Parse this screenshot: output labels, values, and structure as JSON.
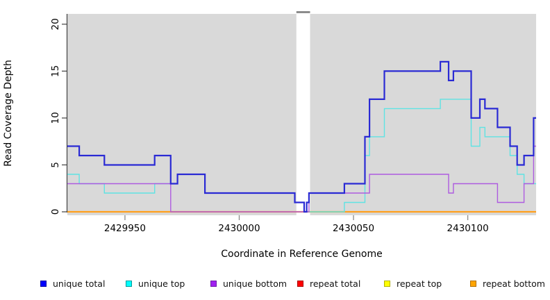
{
  "figure": {
    "xlabel": "Coordinate in Reference Genome",
    "ylabel": "Read Coverage Depth"
  },
  "chart_data": {
    "type": "line",
    "subtype": "step-coverage",
    "title": "",
    "xlabel": "Coordinate in Reference Genome",
    "ylabel": "Read Coverage Depth",
    "xlim": [
      2429924.8,
      2430129.9
    ],
    "ylim": [
      0,
      21.1
    ],
    "x_ticks": [
      2429950,
      2430000,
      2430050,
      2430100
    ],
    "y_ticks": [
      0,
      5,
      10,
      15,
      20
    ],
    "grid": false,
    "panel_bg": "#D9D9D9",
    "gap_region": {
      "start": 2430025,
      "end": 2430031,
      "fill": "#FFFFFF",
      "top_tick_color": "#8C8C8C"
    },
    "legend_position": "bottom",
    "series": [
      {
        "name": "repeat total",
        "color": "#E02020",
        "width": 1.4,
        "steps": [
          [
            2429924.8,
            0
          ],
          [
            2430129.9,
            0
          ]
        ]
      },
      {
        "name": "repeat top",
        "color": "#F5E626",
        "width": 1.4,
        "steps": [
          [
            2429924.8,
            0
          ],
          [
            2430129.9,
            0
          ]
        ]
      },
      {
        "name": "repeat bottom",
        "color": "#FFA01E",
        "width": 2.2,
        "steps": [
          [
            2429924.8,
            0
          ],
          [
            2430129.9,
            0
          ]
        ]
      },
      {
        "name": "unique top",
        "color": "#5FE3E3",
        "width": 1.4,
        "steps": [
          [
            2429924.8,
            4
          ],
          [
            2429930,
            3
          ],
          [
            2429941,
            2
          ],
          [
            2429963,
            3
          ],
          [
            2429973,
            4
          ],
          [
            2429985,
            2
          ],
          [
            2430024.3,
            1
          ],
          [
            2430028.4,
            0
          ],
          [
            2430046,
            1
          ],
          [
            2430055,
            6
          ],
          [
            2430057,
            8
          ],
          [
            2430063.5,
            11
          ],
          [
            2430088,
            12
          ],
          [
            2430101.5,
            7
          ],
          [
            2430105.3,
            9
          ],
          [
            2430107.5,
            8
          ],
          [
            2430118.5,
            6
          ],
          [
            2430121.6,
            4
          ],
          [
            2430124.6,
            3
          ],
          [
            2430129.9,
            3
          ]
        ]
      },
      {
        "name": "unique bottom",
        "color": "#AE5BE0",
        "width": 1.4,
        "steps": [
          [
            2429924.8,
            3
          ],
          [
            2429970,
            0
          ],
          [
            2430030.5,
            2
          ],
          [
            2430057,
            4
          ],
          [
            2430091.6,
            2
          ],
          [
            2430093.7,
            3
          ],
          [
            2430113,
            1
          ],
          [
            2430124.6,
            3
          ],
          [
            2430128.8,
            7
          ],
          [
            2430129.9,
            7
          ]
        ]
      },
      {
        "name": "unique total",
        "color": "#2A2AD4",
        "width": 2.2,
        "steps": [
          [
            2429924.8,
            7
          ],
          [
            2429930,
            6
          ],
          [
            2429941,
            5
          ],
          [
            2429963,
            6
          ],
          [
            2429970,
            3
          ],
          [
            2429973,
            4
          ],
          [
            2429985,
            2
          ],
          [
            2430024.3,
            1
          ],
          [
            2430028.4,
            0
          ],
          [
            2430029.5,
            1
          ],
          [
            2430030.5,
            2
          ],
          [
            2430046,
            3
          ],
          [
            2430055,
            8
          ],
          [
            2430057,
            12
          ],
          [
            2430063.5,
            15
          ],
          [
            2430088,
            16
          ],
          [
            2430091.6,
            14
          ],
          [
            2430093.7,
            15
          ],
          [
            2430101.5,
            10
          ],
          [
            2430105.3,
            12
          ],
          [
            2430107.5,
            11
          ],
          [
            2430113,
            9
          ],
          [
            2430118.5,
            7
          ],
          [
            2430121.6,
            5
          ],
          [
            2430124.6,
            6
          ],
          [
            2430128.8,
            10
          ],
          [
            2430129.9,
            10
          ]
        ]
      }
    ],
    "legend": [
      {
        "label": "unique total",
        "fill": "#0000FF",
        "border": "#0000A0"
      },
      {
        "label": "unique top",
        "fill": "#00FFFF",
        "border": "#009999"
      },
      {
        "label": "unique bottom",
        "fill": "#A020F0",
        "border": "#6E1AA8"
      },
      {
        "label": "repeat total",
        "fill": "#FF0000",
        "border": "#A80000"
      },
      {
        "label": "repeat top",
        "fill": "#FFFF00",
        "border": "#B0B000"
      },
      {
        "label": "repeat bottom",
        "fill": "#FFA500",
        "border": "#B06F00"
      }
    ]
  }
}
